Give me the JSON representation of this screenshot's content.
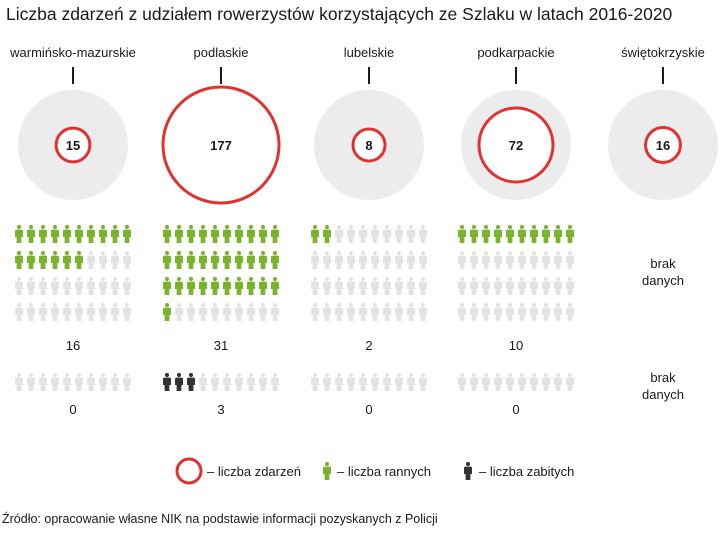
{
  "title": "Liczba zdarzeń z udziałem rowerzystów korzystających ze Szlaku w latach 2016-2020",
  "source": "Źródło: opracowanie własne NIK na podstawie informacji pozyskanych z Policji",
  "colors": {
    "circle_ring": "#e0322f",
    "circle_bg": "#ececec",
    "injured": "#7ab42e",
    "killed": "#333333",
    "empty": "#e3e3e3"
  },
  "chart_data": {
    "type": "pictogram",
    "title": "Liczba zdarzeń z udziałem rowerzystów korzystających ze Szlaku w latach 2016-2020",
    "categories": [
      "warmińsko-mazurskie",
      "podlaskie",
      "lubelskie",
      "podkarpackie",
      "świętokrzyskie"
    ],
    "series": [
      {
        "name": "– liczba zdarzeń",
        "values": [
          15,
          177,
          8,
          72,
          16
        ]
      },
      {
        "name": "– liczba rannych",
        "values": [
          16,
          31,
          2,
          10,
          null
        ]
      },
      {
        "name": "– liczba zabitych",
        "values": [
          0,
          3,
          0,
          0,
          null
        ]
      }
    ],
    "no_data_label": [
      "brak",
      "danych"
    ],
    "legend": [
      "– liczba zdarzeń",
      "– liczba rannych",
      "– liczba zabitych"
    ],
    "legend_position": "bottom"
  }
}
